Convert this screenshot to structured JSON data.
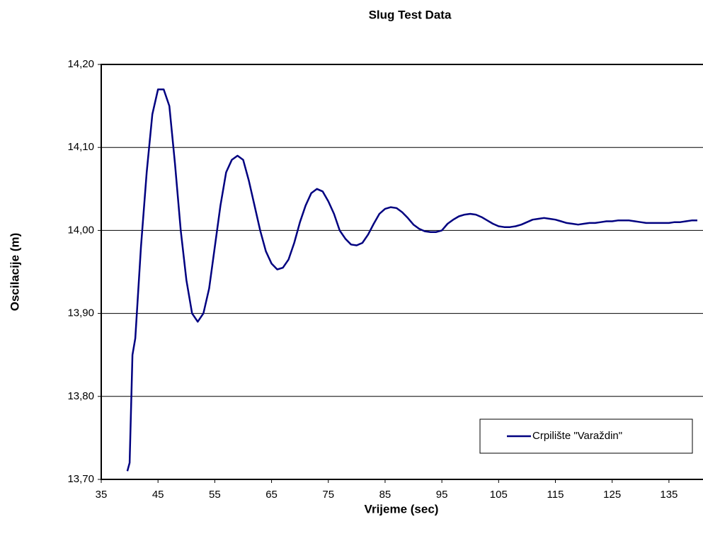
{
  "chart_data": {
    "type": "line",
    "title": "Slug Test Data",
    "x_label": "Vrijeme (sec)",
    "y_label": "Oscilacije (m)",
    "x": [
      39.6,
      40,
      40.5,
      41,
      42,
      43,
      44,
      45,
      46,
      47,
      48,
      49,
      50,
      51,
      52,
      53,
      54,
      55,
      56,
      57,
      58,
      59,
      60,
      61,
      62,
      63,
      64,
      65,
      66,
      67,
      68,
      69,
      70,
      71,
      72,
      73,
      74,
      75,
      76,
      77,
      78,
      79,
      80,
      81,
      82,
      83,
      84,
      85,
      86,
      87,
      88,
      89,
      90,
      91,
      92,
      93,
      94,
      95,
      96,
      97,
      98,
      99,
      100,
      101,
      102,
      103,
      104,
      105,
      106,
      107,
      108,
      109,
      110,
      111,
      112,
      113,
      114,
      115,
      116,
      117,
      118,
      119,
      120,
      121,
      122,
      123,
      124,
      125,
      126,
      127,
      128,
      129,
      130,
      131,
      132,
      133,
      134,
      135,
      136,
      137,
      138,
      139,
      140
    ],
    "series": [
      {
        "name": "Crpilište \"Varaždin\"",
        "color": "#000080",
        "values": [
          13.71,
          13.72,
          13.85,
          13.87,
          13.98,
          14.07,
          14.14,
          14.17,
          14.17,
          14.15,
          14.08,
          14.0,
          13.94,
          13.9,
          13.89,
          13.9,
          13.93,
          13.98,
          14.03,
          14.07,
          14.085,
          14.09,
          14.085,
          14.06,
          14.03,
          14.0,
          13.975,
          13.96,
          13.953,
          13.955,
          13.965,
          13.985,
          14.01,
          14.03,
          14.045,
          14.05,
          14.047,
          14.035,
          14.02,
          14.0,
          13.99,
          13.983,
          13.982,
          13.985,
          13.995,
          14.008,
          14.02,
          14.026,
          14.028,
          14.027,
          14.022,
          14.015,
          14.007,
          14.002,
          13.999,
          13.998,
          13.998,
          14.0,
          14.008,
          14.013,
          14.017,
          14.019,
          14.02,
          14.019,
          14.016,
          14.012,
          14.008,
          14.005,
          14.004,
          14.004,
          14.005,
          14.007,
          14.01,
          14.013,
          14.014,
          14.015,
          14.014,
          14.013,
          14.011,
          14.009,
          14.008,
          14.007,
          14.008,
          14.009,
          14.009,
          14.01,
          14.011,
          14.011,
          14.012,
          14.012,
          14.012,
          14.011,
          14.01,
          14.009,
          14.009,
          14.009,
          14.009,
          14.009,
          14.01,
          14.01,
          14.011,
          14.012,
          14.012
        ]
      }
    ],
    "xlim": [
      35,
      141
    ],
    "xticks": [
      35,
      45,
      55,
      65,
      75,
      85,
      95,
      105,
      115,
      125,
      135
    ],
    "ylim": [
      13.7,
      14.2
    ],
    "yticks": [
      {
        "value": 13.7,
        "label": "13,70"
      },
      {
        "value": 13.8,
        "label": "13,80"
      },
      {
        "value": 13.9,
        "label": "13,90"
      },
      {
        "value": 14.0,
        "label": "14,00"
      },
      {
        "value": 14.1,
        "label": "14,10"
      },
      {
        "value": 14.2,
        "label": "14,20"
      }
    ],
    "grid": true,
    "legend": "lower right"
  }
}
